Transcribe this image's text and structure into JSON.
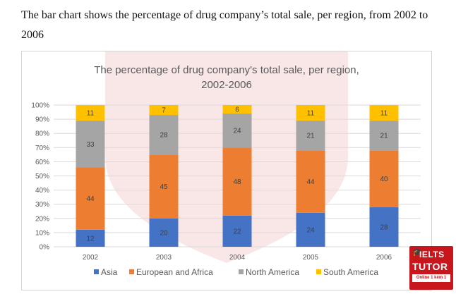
{
  "intro_text": "The bar chart shows the percentage of drug company’s total sale, per region, from 2002 to 2006",
  "logo": {
    "line1": "IELTS",
    "line2": "TUTOR",
    "line3": "Online 1 kèm 1"
  },
  "chart_data": {
    "type": "bar",
    "stacked": true,
    "title": "The percentage of drug company's total sale, per region,",
    "subtitle": "2002-2006",
    "categories": [
      "2002",
      "2003",
      "2004",
      "2005",
      "2006"
    ],
    "series": [
      {
        "name": "Asia",
        "values": [
          12,
          20,
          22,
          24,
          28
        ],
        "color": "#4472c4"
      },
      {
        "name": "European and Africa",
        "values": [
          44,
          45,
          48,
          44,
          40
        ],
        "color": "#ed7d31"
      },
      {
        "name": "North America",
        "values": [
          33,
          28,
          24,
          21,
          21
        ],
        "color": "#a5a5a5"
      },
      {
        "name": "South America",
        "values": [
          11,
          7,
          6,
          11,
          11
        ],
        "color": "#ffc000"
      }
    ],
    "ylim": [
      0,
      100
    ],
    "yticks": [
      "0%",
      "10%",
      "20%",
      "30%",
      "40%",
      "50%",
      "60%",
      "70%",
      "80%",
      "90%",
      "100%"
    ],
    "legend_position": "bottom",
    "grid": true
  }
}
